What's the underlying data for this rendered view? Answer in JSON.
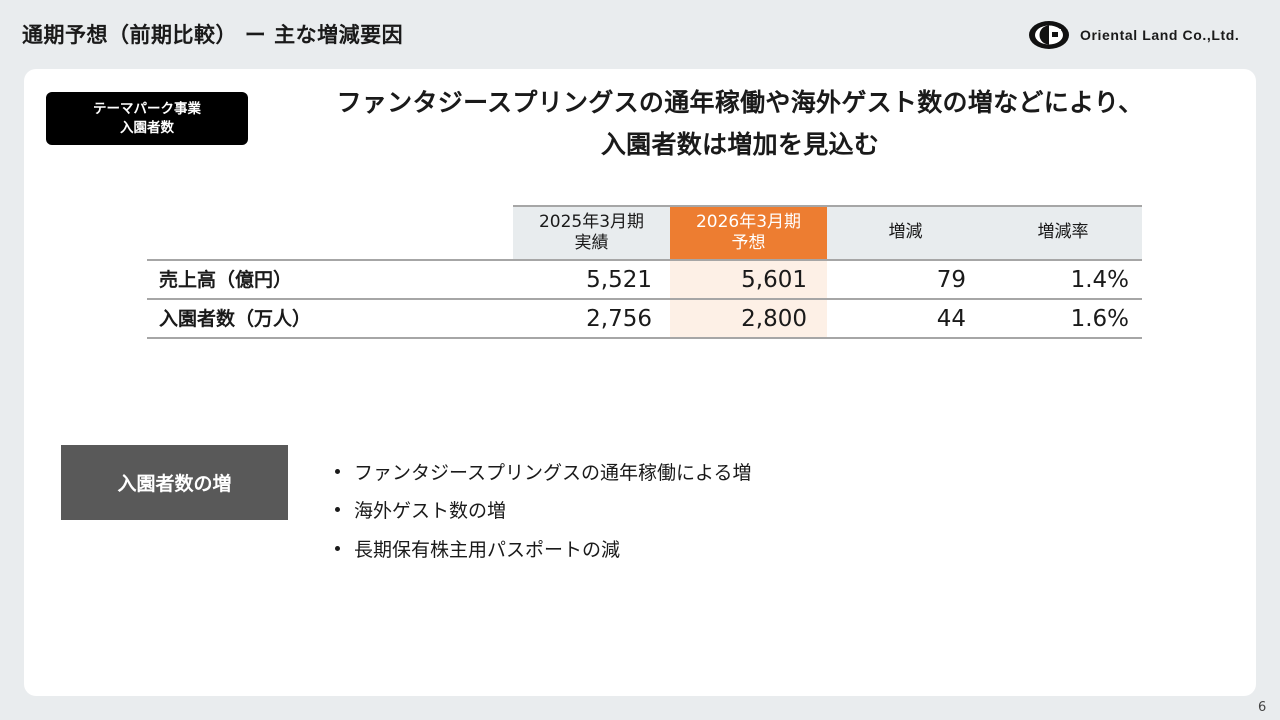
{
  "header": {
    "title": "通期予想（前期比較） ー 主な増減要因",
    "logo_text": "Oriental Land Co.,Ltd.",
    "logo_icon": "oriental-land-logo-icon"
  },
  "segment": {
    "line1": "テーマパーク事業",
    "line2": "入園者数"
  },
  "headline": {
    "line1": "ファンタジースプリングスの通年稼働や海外ゲスト数の増などにより、",
    "line2": "入園者数は増加を見込む"
  },
  "table": {
    "headers": [
      {
        "line1": "2025年3月期",
        "line2": "実績"
      },
      {
        "line1": "2026年3月期",
        "line2": "予想"
      },
      {
        "line1": "増減",
        "line2": ""
      },
      {
        "line1": "増減率",
        "line2": ""
      }
    ],
    "rows": [
      {
        "label": "売上高（億円）",
        "values": [
          "5,521",
          "5,601",
          "79",
          "1.4%"
        ]
      },
      {
        "label": "入園者数（万人）",
        "values": [
          "2,756",
          "2,800",
          "44",
          "1.6%"
        ]
      }
    ],
    "colors": {
      "forecast_header": "#ed7d31",
      "forecast_cell": "#fdf0e6",
      "header_gray": "#e8ecee"
    }
  },
  "reasons": {
    "label": "入園者数の増",
    "items": [
      "ファンタジースプリングスの通年稼働による増",
      "海外ゲスト数の増",
      "長期保有株主用パスポートの減"
    ]
  },
  "page_number": "6"
}
